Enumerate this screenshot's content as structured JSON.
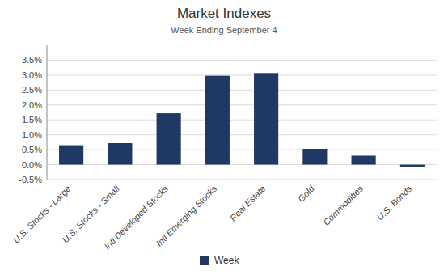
{
  "chart_data": {
    "type": "bar",
    "title": "Market Indexes",
    "subtitle": "Week Ending September 4",
    "categories": [
      "U.S. Stocks - Large",
      "U.S. Stocks - Small",
      "Intl Developed Stocks",
      "Intl Emerging Stocks",
      "Real Estate",
      "Gold",
      "Commodities",
      "U.S. Bonds"
    ],
    "series": [
      {
        "name": "Week",
        "color": "#1F3864",
        "values": [
          0.0065,
          0.0072,
          0.0172,
          0.0298,
          0.0307,
          0.0053,
          0.003,
          -0.0007
        ]
      }
    ],
    "ylim": [
      -0.005,
      0.04
    ],
    "yticks": [
      {
        "value": -0.005,
        "label": "-0.5%"
      },
      {
        "value": 0.0,
        "label": "0.0%"
      },
      {
        "value": 0.005,
        "label": "0.5%"
      },
      {
        "value": 0.01,
        "label": "1.0%"
      },
      {
        "value": 0.015,
        "label": "1.5%"
      },
      {
        "value": 0.02,
        "label": "2.0%"
      },
      {
        "value": 0.025,
        "label": "2.5%"
      },
      {
        "value": 0.03,
        "label": "3.0%"
      },
      {
        "value": 0.035,
        "label": "3.5%"
      }
    ],
    "grid": true,
    "legend": "bottom"
  }
}
